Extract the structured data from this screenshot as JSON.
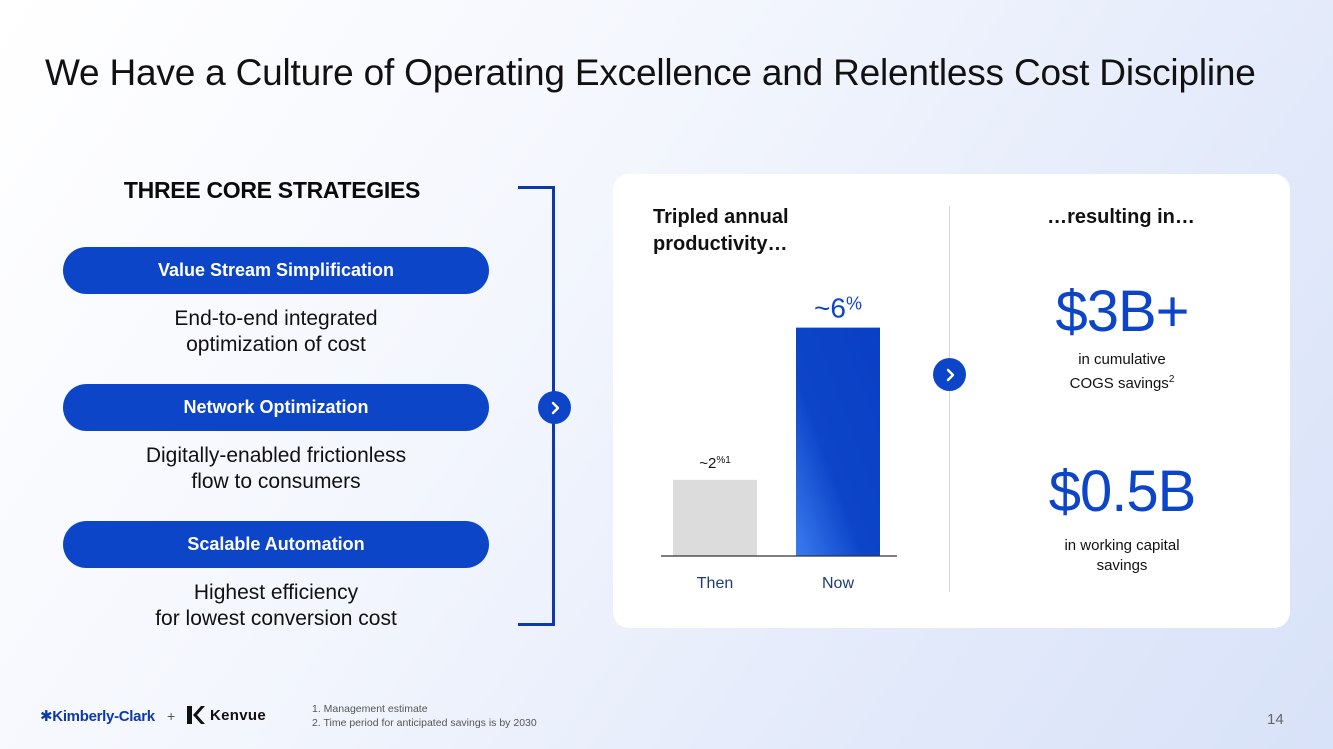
{
  "slide": {
    "title": "We Have a Culture of Operating Excellence and Relentless Cost Discipline",
    "page_number": "14"
  },
  "strategies": {
    "heading": "THREE CORE STRATEGIES",
    "items": [
      {
        "label": "Value Stream Simplification",
        "desc_line1": "End-to-end integrated",
        "desc_line2": "optimization of cost"
      },
      {
        "label": "Network Optimization",
        "desc_line1": "Digitally-enabled frictionless",
        "desc_line2": "flow to consumers"
      },
      {
        "label": "Scalable Automation",
        "desc_line1": "Highest efficiency",
        "desc_line2": "for lowest conversion cost"
      }
    ]
  },
  "productivity": {
    "heading_line1": "Tripled annual",
    "heading_line2": "productivity…"
  },
  "chart_data": {
    "type": "bar",
    "categories": [
      "Then",
      "Now"
    ],
    "values": [
      2,
      6
    ],
    "data_labels": [
      {
        "prefix": "~2",
        "suffix": "%1"
      },
      {
        "prefix": "~6",
        "suffix": "%"
      }
    ],
    "colors": [
      "#dcdcdc",
      "#0d45c8"
    ],
    "ylim": [
      0,
      6.2
    ],
    "title": "",
    "xlabel": "",
    "ylabel": "",
    "grid": false
  },
  "results": {
    "heading": "…resulting in…",
    "metric1_value": "$3B+",
    "metric1_caption_line1": "in cumulative",
    "metric1_caption_line2": "COGS savings",
    "metric1_caption_sup": "2",
    "metric2_value": "$0.5B",
    "metric2_caption_line1": "in working capital",
    "metric2_caption_line2": "savings"
  },
  "footer": {
    "logo_left": "Kimberly-Clark",
    "logo_plus": "+",
    "logo_right": "Kenvue",
    "footnote1": "1.  Management estimate",
    "footnote2": "2.  Time period for anticipated savings is by 2030"
  },
  "colors": {
    "accent": "#0d45c8",
    "bracket": "#0d3aa8",
    "then_bar": "#dcdcdc",
    "text": "#111111"
  }
}
